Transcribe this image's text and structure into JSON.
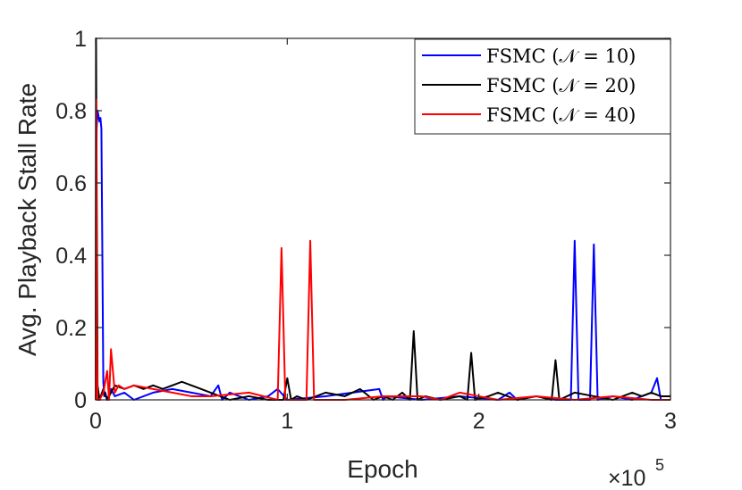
{
  "chart_data": {
    "type": "line",
    "title": "",
    "xlabel": "Epoch",
    "ylabel": "Avg. Playback Stall Rate",
    "x_multiplier_label": "×10",
    "x_multiplier_exp": "5",
    "xlim": [
      0,
      3
    ],
    "ylim": [
      0,
      1
    ],
    "x_ticks": [
      0,
      1,
      2,
      3
    ],
    "x_tick_labels": [
      "0",
      "1",
      "2",
      "3"
    ],
    "y_ticks": [
      0,
      0.2,
      0.4,
      0.6,
      0.8,
      1
    ],
    "y_tick_labels": [
      "0",
      "0.2",
      "0.4",
      "0.6",
      "0.8",
      "1"
    ],
    "grid": false,
    "legend_position": "top-right",
    "series": [
      {
        "name": "FSMC (𝒩 = 10)",
        "color": "#0000ff",
        "x": [
          0,
          0.005,
          0.01,
          0.02,
          0.025,
          0.03,
          0.035,
          0.04,
          0.045,
          0.05,
          0.06,
          0.08,
          0.1,
          0.15,
          0.2,
          0.3,
          0.4,
          0.5,
          0.6,
          0.64,
          0.66,
          0.7,
          0.8,
          0.9,
          0.95,
          1.0,
          1.2,
          1.48,
          1.5,
          1.52,
          1.7,
          1.9,
          2.1,
          2.16,
          2.2,
          2.3,
          2.4,
          2.48,
          2.5,
          2.52,
          2.55,
          2.58,
          2.6,
          2.62,
          2.7,
          2.8,
          2.9,
          2.93,
          2.95,
          3.0
        ],
        "values": [
          0.02,
          0.75,
          0.8,
          0.77,
          0.78,
          0.75,
          0.4,
          0.05,
          0.01,
          0.02,
          0.0,
          0.03,
          0.01,
          0.02,
          0.0,
          0.02,
          0.03,
          0.02,
          0.01,
          0.04,
          0.0,
          0.02,
          0.0,
          0.01,
          0.03,
          0.0,
          0.01,
          0.03,
          0.0,
          0.01,
          0.0,
          0.01,
          0.0,
          0.02,
          0.0,
          0.01,
          0.0,
          0.0,
          0.44,
          0.0,
          0.0,
          0.0,
          0.43,
          0.0,
          0.01,
          0.0,
          0.02,
          0.06,
          0.0,
          0.0
        ]
      },
      {
        "name": "FSMC (𝒩 = 20)",
        "color": "#000000",
        "x": [
          0,
          0.002,
          0.01,
          0.02,
          0.04,
          0.06,
          0.08,
          0.1,
          0.15,
          0.2,
          0.25,
          0.3,
          0.35,
          0.4,
          0.45,
          0.5,
          0.55,
          0.6,
          0.7,
          0.8,
          0.9,
          0.98,
          1.0,
          1.02,
          1.05,
          1.1,
          1.2,
          1.3,
          1.38,
          1.45,
          1.5,
          1.55,
          1.6,
          1.64,
          1.66,
          1.68,
          1.72,
          1.8,
          1.9,
          1.94,
          1.96,
          1.98,
          2.05,
          2.1,
          2.2,
          2.3,
          2.38,
          2.4,
          2.42,
          2.5,
          2.6,
          2.7,
          2.8,
          2.85,
          2.9,
          2.95,
          3.0
        ],
        "values": [
          0.0,
          1.0,
          0.04,
          0.0,
          0.03,
          0.0,
          0.02,
          0.04,
          0.03,
          0.04,
          0.03,
          0.04,
          0.03,
          0.04,
          0.05,
          0.04,
          0.03,
          0.02,
          0.0,
          0.01,
          0.0,
          0.0,
          0.06,
          0.0,
          0.01,
          0.0,
          0.02,
          0.01,
          0.03,
          0.0,
          0.01,
          0.0,
          0.02,
          0.0,
          0.19,
          0.0,
          0.01,
          0.0,
          0.01,
          0.0,
          0.13,
          0.0,
          0.01,
          0.02,
          0.0,
          0.01,
          0.0,
          0.11,
          0.0,
          0.02,
          0.01,
          0.0,
          0.02,
          0.01,
          0.02,
          0.01,
          0.01
        ]
      },
      {
        "name": "FSMC (𝒩 = 40)",
        "color": "#ff0000",
        "x": [
          0,
          0.003,
          0.006,
          0.01,
          0.02,
          0.04,
          0.06,
          0.07,
          0.08,
          0.1,
          0.12,
          0.15,
          0.2,
          0.3,
          0.4,
          0.5,
          0.6,
          0.8,
          0.95,
          0.97,
          0.99,
          1.05,
          1.1,
          1.12,
          1.14,
          1.2,
          1.3,
          1.5,
          1.7,
          1.8,
          1.9,
          2.0,
          2.1,
          2.3,
          2.5,
          2.7,
          2.9,
          3.0
        ],
        "values": [
          0.0,
          0.83,
          0.2,
          0.0,
          0.0,
          0.02,
          0.08,
          0.0,
          0.14,
          0.02,
          0.04,
          0.03,
          0.04,
          0.03,
          0.02,
          0.01,
          0.01,
          0.02,
          0.0,
          0.42,
          0.0,
          0.0,
          0.0,
          0.44,
          0.0,
          0.0,
          0.0,
          0.01,
          0.01,
          0.0,
          0.02,
          0.01,
          0.0,
          0.01,
          0.0,
          0.01,
          0.0,
          0.0
        ]
      }
    ]
  }
}
